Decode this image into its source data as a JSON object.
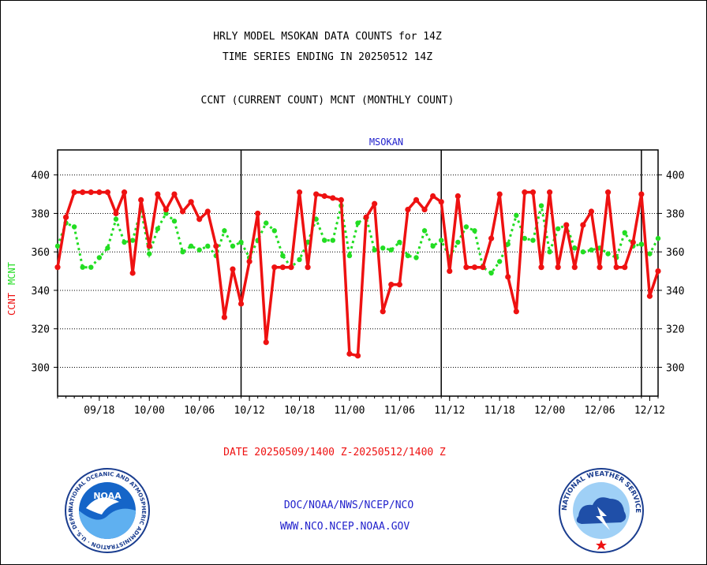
{
  "header": {
    "title_line1": "HRLY MODEL MSOKAN DATA COUNTS for 14Z",
    "title_line2": "TIME SERIES ENDING IN 20250512 14Z",
    "subtitle": "CCNT (CURRENT COUNT) MCNT (MONTHLY COUNT)"
  },
  "footer": {
    "date_range": "DATE 20250509/1400 Z-20250512/1400 Z",
    "org_path": "DOC/NOAA/NWS/NCEP/NCO",
    "website": "WWW.NCO.NCEP.NOAA.GOV"
  },
  "logos": {
    "noaa_text": "NOAA",
    "noaa_ring": "NATIONAL OCEANIC AND ATMOSPHERIC ADMINISTRATION · U.S. DEPARTMENT OF COMMERCE",
    "nws_ring": "NATIONAL WEATHER SERVICE"
  },
  "colors": {
    "ccnt": "#ee1111",
    "mcnt": "#22dd22",
    "station": "#2222cc",
    "footer_text": "#2222cc",
    "date_text": "#ee1111"
  },
  "chart_data": {
    "type": "line",
    "title": "MSOKAN",
    "ylabel_left": [
      "CCNT",
      "MCNT"
    ],
    "ylim": [
      285,
      413
    ],
    "yticks": [
      300,
      320,
      340,
      360,
      380,
      400
    ],
    "x_ticklabels": [
      "09/18",
      "10/00",
      "10/06",
      "10/12",
      "10/18",
      "11/00",
      "11/06",
      "11/12",
      "11/18",
      "12/00",
      "12/06",
      "12/12"
    ],
    "day_boundaries_index": [
      22,
      46,
      70
    ],
    "grid": true,
    "series": [
      {
        "name": "CCNT",
        "values": [
          352,
          378,
          391,
          391,
          391,
          391,
          391,
          380,
          391,
          349,
          387,
          363,
          390,
          382,
          390,
          381,
          386,
          377,
          381,
          363,
          326,
          351,
          333,
          355,
          380,
          313,
          352,
          352,
          352,
          391,
          352,
          390,
          389,
          388,
          387,
          307,
          306,
          378,
          385,
          329,
          343,
          343,
          382,
          387,
          382,
          389,
          386,
          350,
          389,
          352,
          352,
          352,
          367,
          390,
          347,
          329,
          391,
          391,
          352,
          391,
          352,
          374,
          352,
          374,
          381,
          352,
          391,
          352,
          352,
          365,
          390,
          337,
          350
        ]
      },
      {
        "name": "MCNT",
        "values": [
          363,
          375,
          373,
          352,
          352,
          357,
          362,
          377,
          365,
          366,
          382,
          359,
          372,
          380,
          376,
          360,
          363,
          361,
          363,
          358,
          371,
          363,
          365,
          357,
          366,
          375,
          371,
          358,
          352,
          356,
          365,
          377,
          366,
          366,
          384,
          358,
          375,
          378,
          361,
          362,
          361,
          365,
          358,
          357,
          371,
          363,
          366,
          357,
          365,
          373,
          371,
          352,
          349,
          355,
          364,
          379,
          367,
          366,
          384,
          360,
          372,
          374,
          362,
          360,
          361,
          362,
          359,
          357,
          370,
          363,
          364,
          359,
          367
        ]
      }
    ]
  }
}
